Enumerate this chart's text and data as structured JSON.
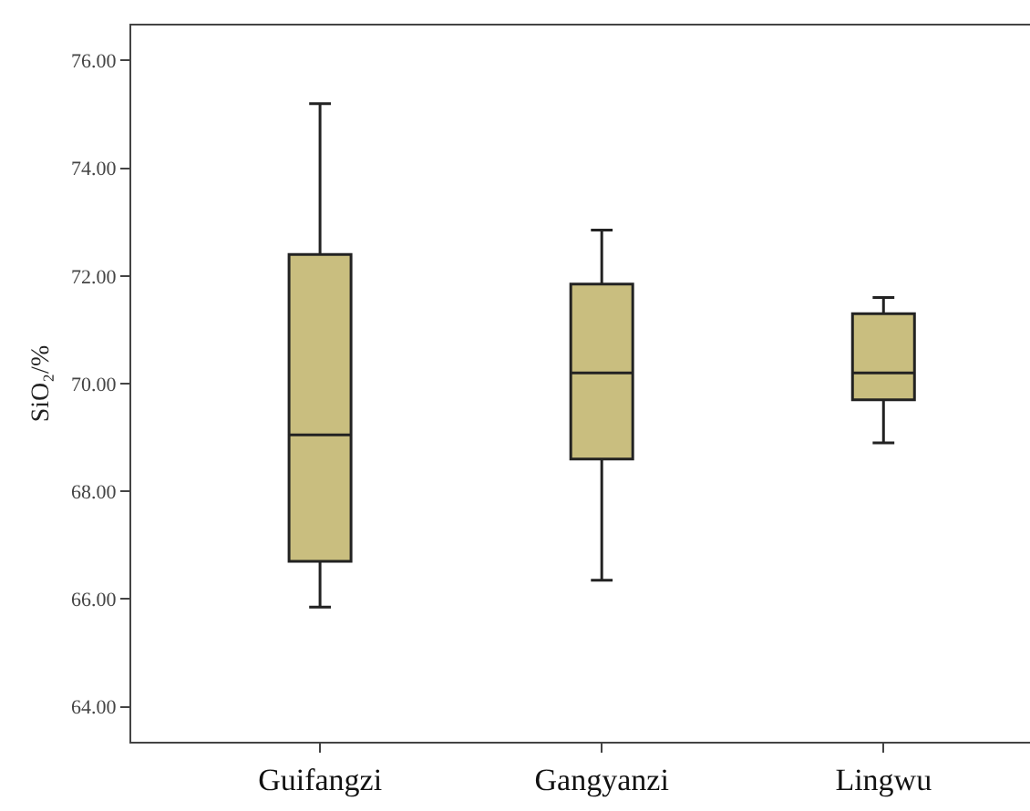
{
  "chart_data": {
    "type": "box",
    "ylabel": "SiO₂/%",
    "categories": [
      "Guifangzi",
      "Gangyanzi",
      "Lingwu"
    ],
    "color": "#c9be7f",
    "boxes": [
      {
        "low": 65.85,
        "q1": 66.7,
        "median": 69.05,
        "q3": 72.4,
        "high": 75.2
      },
      {
        "low": 66.35,
        "q1": 68.6,
        "median": 70.2,
        "q3": 71.85,
        "high": 72.85
      },
      {
        "low": 68.9,
        "q1": 69.7,
        "median": 70.2,
        "q3": 71.3,
        "high": 71.6
      }
    ],
    "ylim": [
      63.35,
      76.65
    ],
    "yticks": [
      {
        "value": 64,
        "label": "64.00"
      },
      {
        "value": 66,
        "label": "66.00"
      },
      {
        "value": 68,
        "label": "68.00"
      },
      {
        "value": 70,
        "label": "70.00"
      },
      {
        "value": 72,
        "label": "72.00"
      },
      {
        "value": 74,
        "label": "74.00"
      },
      {
        "value": 76,
        "label": "76.00"
      }
    ],
    "grid": false,
    "legend": false
  }
}
